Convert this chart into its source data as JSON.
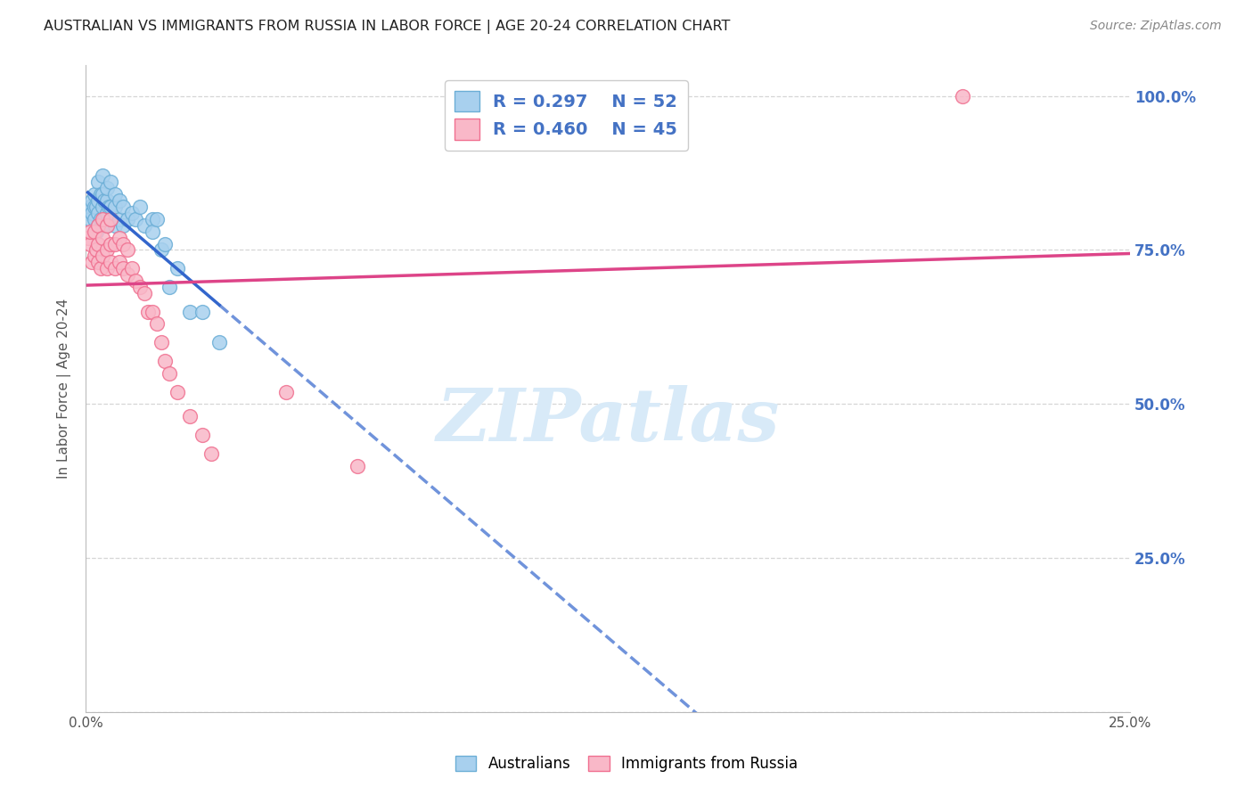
{
  "title": "AUSTRALIAN VS IMMIGRANTS FROM RUSSIA IN LABOR FORCE | AGE 20-24 CORRELATION CHART",
  "source": "Source: ZipAtlas.com",
  "ylabel": "In Labor Force | Age 20-24",
  "xlim": [
    0.0,
    0.25
  ],
  "ylim": [
    0.0,
    1.05
  ],
  "ytick_vals": [
    0.0,
    0.25,
    0.5,
    0.75,
    1.0
  ],
  "ytick_labels_right": [
    "",
    "25.0%",
    "50.0%",
    "75.0%",
    "100.0%"
  ],
  "xtick_vals": [
    0.0,
    0.025,
    0.05,
    0.075,
    0.1,
    0.125,
    0.15,
    0.175,
    0.2,
    0.225,
    0.25
  ],
  "xtick_labels": [
    "0.0%",
    "",
    "",
    "",
    "",
    "",
    "",
    "",
    "",
    "",
    "25.0%"
  ],
  "R_australian": 0.297,
  "N_australian": 52,
  "R_russia": 0.46,
  "N_russia": 45,
  "blue_scatter_color": "#a8d0ee",
  "blue_edge_color": "#6baed6",
  "pink_scatter_color": "#f9b8c8",
  "pink_edge_color": "#f07090",
  "blue_line_color": "#3366cc",
  "pink_line_color": "#dd4488",
  "legend_label_blue": "Australians",
  "legend_label_pink": "Immigrants from Russia",
  "aus_x": [
    0.0005,
    0.001,
    0.001,
    0.0015,
    0.0015,
    0.002,
    0.002,
    0.002,
    0.0025,
    0.0025,
    0.003,
    0.003,
    0.003,
    0.003,
    0.0035,
    0.0035,
    0.004,
    0.004,
    0.004,
    0.004,
    0.0045,
    0.0045,
    0.005,
    0.005,
    0.005,
    0.005,
    0.0055,
    0.006,
    0.006,
    0.006,
    0.007,
    0.007,
    0.007,
    0.008,
    0.008,
    0.009,
    0.009,
    0.01,
    0.011,
    0.012,
    0.013,
    0.014,
    0.016,
    0.016,
    0.017,
    0.018,
    0.019,
    0.02,
    0.022,
    0.025,
    0.028,
    0.032
  ],
  "aus_y": [
    0.81,
    0.82,
    0.8,
    0.83,
    0.81,
    0.8,
    0.82,
    0.84,
    0.78,
    0.82,
    0.79,
    0.81,
    0.83,
    0.86,
    0.8,
    0.84,
    0.79,
    0.82,
    0.84,
    0.87,
    0.8,
    0.83,
    0.79,
    0.81,
    0.83,
    0.85,
    0.82,
    0.8,
    0.82,
    0.86,
    0.79,
    0.82,
    0.84,
    0.8,
    0.83,
    0.79,
    0.82,
    0.8,
    0.81,
    0.8,
    0.82,
    0.79,
    0.8,
    0.78,
    0.8,
    0.75,
    0.76,
    0.69,
    0.72,
    0.65,
    0.65,
    0.6
  ],
  "rus_x": [
    0.0005,
    0.001,
    0.001,
    0.0015,
    0.002,
    0.002,
    0.0025,
    0.003,
    0.003,
    0.003,
    0.0035,
    0.004,
    0.004,
    0.004,
    0.005,
    0.005,
    0.005,
    0.006,
    0.006,
    0.006,
    0.007,
    0.007,
    0.008,
    0.008,
    0.009,
    0.009,
    0.01,
    0.01,
    0.011,
    0.012,
    0.013,
    0.014,
    0.015,
    0.016,
    0.017,
    0.018,
    0.019,
    0.02,
    0.022,
    0.025,
    0.028,
    0.03,
    0.048,
    0.065,
    0.21
  ],
  "rus_y": [
    0.77,
    0.76,
    0.78,
    0.73,
    0.74,
    0.78,
    0.75,
    0.73,
    0.76,
    0.79,
    0.72,
    0.74,
    0.77,
    0.8,
    0.72,
    0.75,
    0.79,
    0.73,
    0.76,
    0.8,
    0.72,
    0.76,
    0.73,
    0.77,
    0.72,
    0.76,
    0.71,
    0.75,
    0.72,
    0.7,
    0.69,
    0.68,
    0.65,
    0.65,
    0.63,
    0.6,
    0.57,
    0.55,
    0.52,
    0.48,
    0.45,
    0.42,
    0.52,
    0.4,
    1.0
  ],
  "background_color": "#ffffff",
  "grid_color": "#cccccc",
  "title_color": "#222222",
  "watermark_text": "ZIPatlas",
  "watermark_color": "#d8eaf8"
}
